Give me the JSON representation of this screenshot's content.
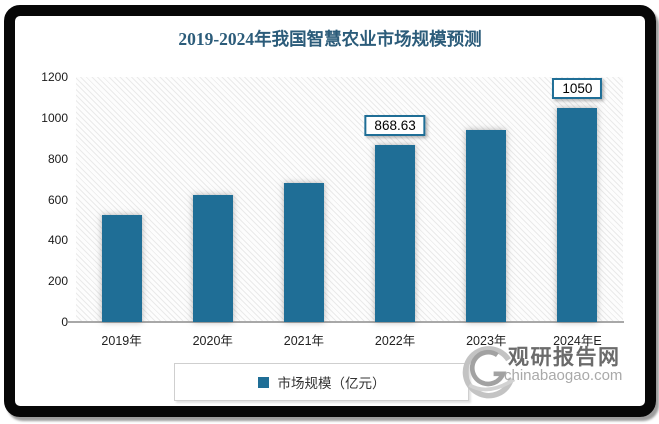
{
  "chart_data": {
    "type": "bar",
    "title": "2019-2024年我国智慧农业市场规模预测",
    "categories": [
      "2019年",
      "2020年",
      "2021年",
      "2022年",
      "2023年",
      "2024年E"
    ],
    "values": [
      525,
      620,
      680,
      868.63,
      940,
      1050
    ],
    "point_labels": [
      "",
      "",
      "",
      "868.63",
      "",
      "1050"
    ],
    "ylim": [
      0,
      1200
    ],
    "yticks": [
      0,
      200,
      400,
      600,
      800,
      1000,
      1200
    ],
    "xlabel": "",
    "ylabel": "",
    "grid": false,
    "plot_background": "diagonal-hatch",
    "legend": {
      "position": "bottom",
      "items": [
        {
          "label": "市场规模（亿元）",
          "color": "#1F6E96"
        }
      ]
    }
  },
  "watermark": {
    "icon": "swirl-logo-icon",
    "brand": "观研报告网",
    "site": "chinabaogao.com"
  },
  "colors": {
    "bar": "#1F6E96",
    "title": "#2C5C7A",
    "axis_line": "#a8a8a8",
    "value_label_border": "#1F6E96",
    "frame": "#070707"
  }
}
